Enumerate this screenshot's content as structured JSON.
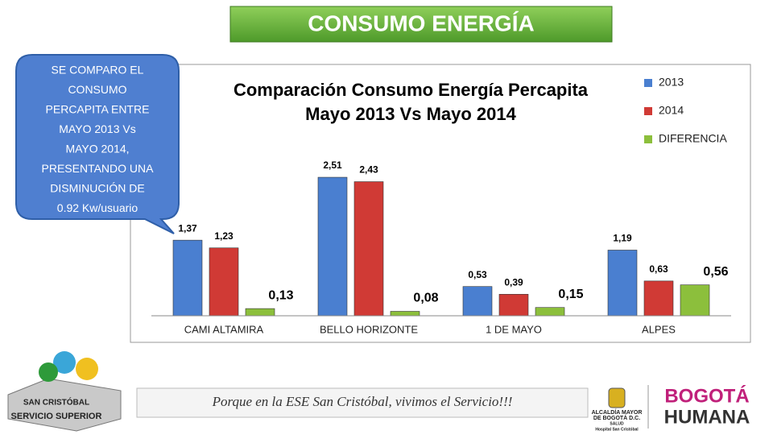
{
  "slide_title": "CONSUMO ENERGÍA",
  "callout": {
    "lines": [
      "SE COMPARO EL",
      "CONSUMO",
      "PERCAPITA ENTRE",
      "MAYO 2013 Vs",
      "MAYO 2014,",
      "PRESENTANDO UNA",
      "DISMINUCIÓN DE",
      "0.92 Kw/usuario"
    ]
  },
  "chart_data": {
    "type": "bar",
    "title": [
      "Comparación Consumo Energía Percapita",
      "Mayo 2013 Vs Mayo 2014"
    ],
    "categories": [
      "CAMI ALTAMIRA",
      "BELLO HORIZONTE",
      "1 DE MAYO",
      "ALPES"
    ],
    "series": [
      {
        "name": "2013",
        "color": "#4a7fd0",
        "values": [
          1.37,
          2.51,
          0.53,
          1.19
        ],
        "value_labels": [
          "1,37",
          "2,51",
          "0,53",
          "1,19"
        ]
      },
      {
        "name": "2014",
        "color": "#d03a35",
        "values": [
          1.23,
          2.43,
          0.39,
          0.63
        ],
        "value_labels": [
          "1,23",
          "2,43",
          "0,39",
          "0,63"
        ]
      },
      {
        "name": "DIFERENCIA",
        "color": "#8cbf3c",
        "values": [
          0.13,
          0.08,
          0.15,
          0.56
        ],
        "value_labels": [
          "0,13",
          "0,08",
          "0,15",
          "0,56"
        ]
      }
    ],
    "legend": "right"
  },
  "footer": {
    "slogan": "Porque en la ESE San Cristóbal, vivimos el Servicio!!!",
    "logo_left": [
      "SAN CRISTÓBAL",
      "SERVICIO SUPERIOR"
    ],
    "alcaldia": [
      "ALCALDÍA MAYOR",
      "DE BOGOTÁ D.C.",
      "SALUD",
      "Hospital San Cristóbal"
    ],
    "bogota": [
      "BOGOTÁ",
      "HUMANA"
    ]
  }
}
